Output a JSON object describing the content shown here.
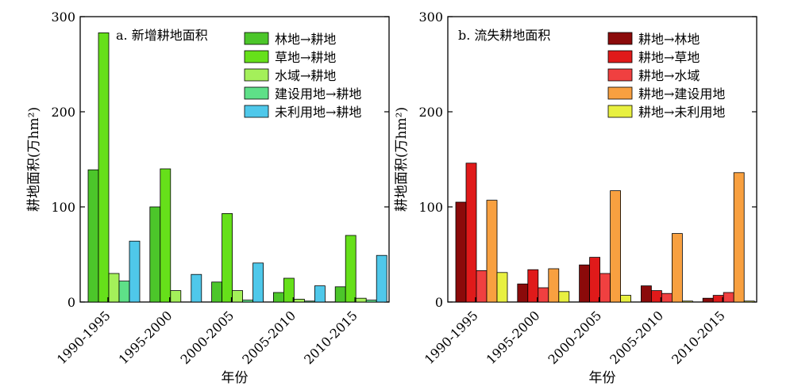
{
  "chart_data": [
    {
      "type": "bar",
      "title": "a. 新增耕地面积",
      "xlabel": "年份",
      "ylabel": "耕地面积(万hm²)",
      "ylim": [
        0,
        300
      ],
      "yticks": [
        0,
        100,
        200,
        300
      ],
      "categories": [
        "1990-1995",
        "1995-2000",
        "2000-2005",
        "2005-2010",
        "2010-2015"
      ],
      "legend_position": "top-right",
      "series": [
        {
          "name": "林地→耕地",
          "color": "#4cc62a",
          "values": [
            139,
            100,
            21,
            10,
            16
          ]
        },
        {
          "name": "草地→耕地",
          "color": "#66e01a",
          "values": [
            283,
            140,
            93,
            25,
            70
          ]
        },
        {
          "name": "水域→耕地",
          "color": "#a4f05a",
          "values": [
            30,
            12,
            12,
            3,
            4
          ]
        },
        {
          "name": "建设用地→耕地",
          "color": "#5ee088",
          "values": [
            22,
            0,
            2,
            1,
            2
          ]
        },
        {
          "name": "未利用地→耕地",
          "color": "#4fc8ea",
          "values": [
            64,
            29,
            41,
            17,
            49
          ]
        }
      ]
    },
    {
      "type": "bar",
      "title": "b. 流失耕地面积",
      "xlabel": "年份",
      "ylabel": "耕地面积(万hm²)",
      "ylim": [
        0,
        300
      ],
      "yticks": [
        0,
        100,
        200,
        300
      ],
      "categories": [
        "1990-1995",
        "1995-2000",
        "2000-2005",
        "2005-2010",
        "2010-2015"
      ],
      "legend_position": "top-right",
      "series": [
        {
          "name": "耕地→林地",
          "color": "#8b0a0a",
          "values": [
            105,
            19,
            39,
            17,
            4
          ]
        },
        {
          "name": "耕地→草地",
          "color": "#e01a1a",
          "values": [
            146,
            34,
            47,
            12,
            7
          ]
        },
        {
          "name": "耕地→水域",
          "color": "#f04040",
          "values": [
            33,
            15,
            30,
            9,
            10
          ]
        },
        {
          "name": "耕地→建设用地",
          "color": "#f8a040",
          "values": [
            107,
            35,
            117,
            72,
            136
          ]
        },
        {
          "name": "耕地→未利用地",
          "color": "#e8f040",
          "values": [
            31,
            11,
            7,
            1,
            1
          ]
        }
      ]
    }
  ]
}
